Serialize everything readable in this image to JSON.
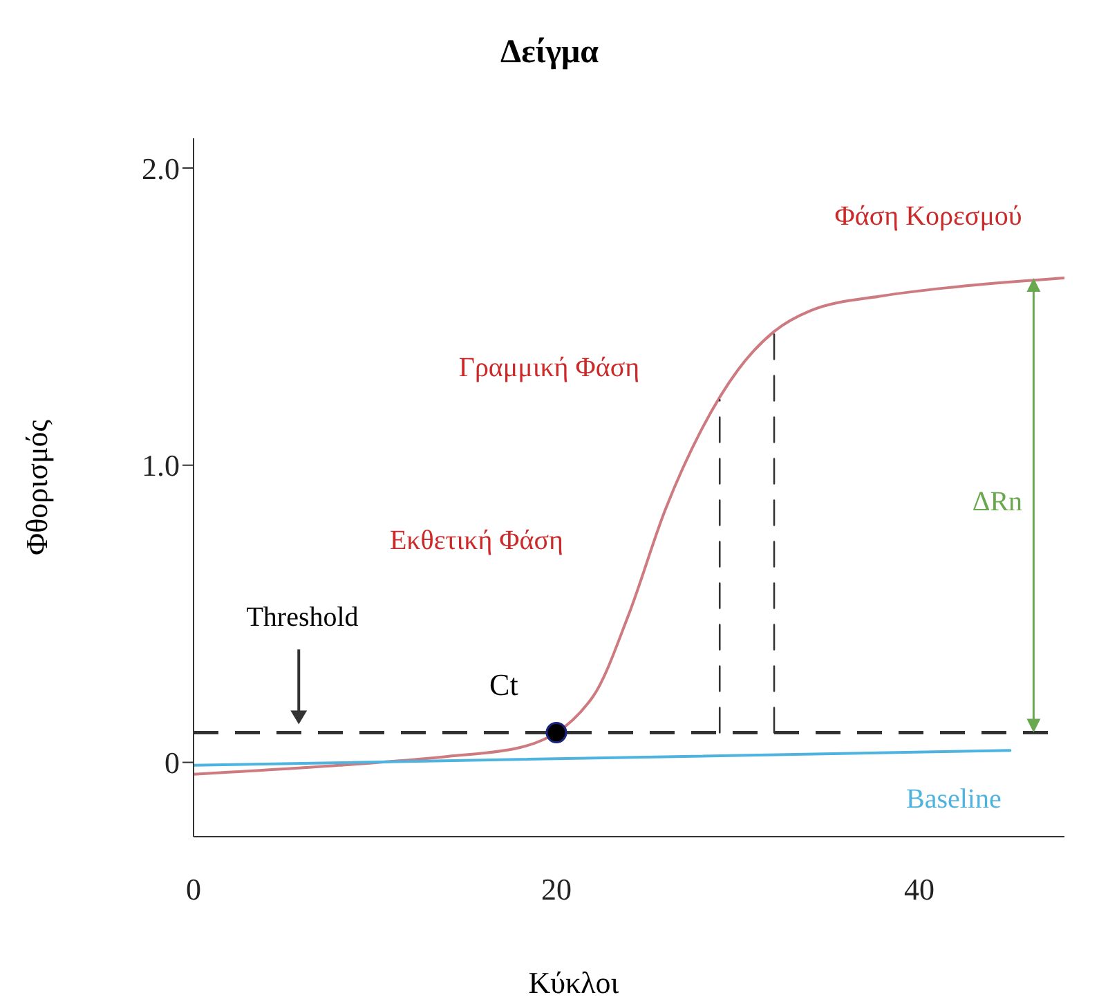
{
  "chart_data": {
    "type": "line",
    "title": "Δείγμα",
    "xlabel": "Κύκλοι",
    "ylabel": "Φθορισμός",
    "xlim": [
      0,
      48
    ],
    "xticks": [
      0,
      20,
      40
    ],
    "ylim": [
      -0.25,
      2.1
    ],
    "yticks": [
      {
        "value": 0,
        "label": "0"
      },
      {
        "value": 1,
        "label": "1.0"
      },
      {
        "value": 2,
        "label": "2.0"
      }
    ],
    "marker": "none",
    "line_style": "solid",
    "series": [
      {
        "color": "#cd7a80",
        "x": [
          0,
          8,
          14,
          18,
          22,
          24,
          26,
          28,
          30,
          32,
          34,
          38,
          42,
          48
        ],
        "values": [
          -0.04,
          -0.01,
          0.02,
          0.05,
          0.22,
          0.5,
          0.85,
          1.12,
          1.32,
          1.45,
          1.52,
          1.57,
          1.6,
          1.63
        ]
      },
      {
        "name": "Baseline",
        "color": "#4fb3e0",
        "x": [
          0,
          45
        ],
        "values": [
          -0.01,
          0.04
        ]
      },
      {
        "color": "#333333",
        "line_style": "dashed",
        "x": [
          29,
          29
        ],
        "values": [
          0.1,
          1.22
        ]
      },
      {
        "color": "#333333",
        "line_style": "dashed",
        "x": [
          32,
          32
        ],
        "values": [
          0.1,
          1.45
        ]
      },
      {
        "type": "scatter",
        "name": "Ct",
        "color": "#000000",
        "marker": "circle",
        "x": [
          20
        ],
        "values": [
          0.1
        ]
      }
    ],
    "ref_lines": [
      {
        "axis": "y",
        "value": 0.1,
        "color": "#333333",
        "line_style": "dashed"
      }
    ],
    "annotations": [
      "Φάση Κορεσμού",
      "Γραμμική Φάση",
      "Εκθετική Φάση",
      "ΔRn",
      "Threshold"
    ]
  }
}
